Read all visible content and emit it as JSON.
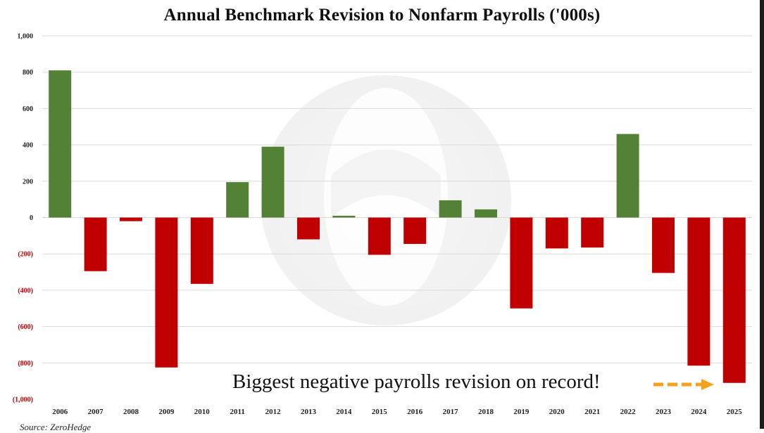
{
  "title": "Annual Benchmark Revision to Nonfarm Payrolls ('000s)",
  "annotation": "Biggest negative payrolls revision on record!",
  "source": "Source: ZeroHedge",
  "colors": {
    "positive": "#538135",
    "negative": "#c00000",
    "negative_tick": "#c00000",
    "positive_tick": "#222222",
    "arrow": "#f4a21d",
    "grid": "#d9d9d9"
  },
  "chart_data": {
    "type": "bar",
    "title": "Annual Benchmark Revision to Nonfarm Payrolls ('000s)",
    "xlabel": "",
    "ylabel": "",
    "ylim": [
      -1000,
      1000
    ],
    "yticks": [
      1000,
      800,
      600,
      400,
      200,
      0,
      -200,
      -400,
      -600,
      -800,
      -1000
    ],
    "ytick_labels": [
      "1,000",
      "800",
      "600",
      "400",
      "200",
      "0",
      "(200)",
      "(400)",
      "(600)",
      "(800)",
      "(1,000)"
    ],
    "grid": true,
    "legend": "none",
    "categories": [
      "2006",
      "2007",
      "2008",
      "2009",
      "2010",
      "2011",
      "2012",
      "2013",
      "2014",
      "2015",
      "2016",
      "2017",
      "2018",
      "2019",
      "2020",
      "2021",
      "2022",
      "2023",
      "2024",
      "2025"
    ],
    "values": [
      810,
      -295,
      -20,
      -825,
      -365,
      195,
      390,
      -120,
      10,
      -205,
      -145,
      95,
      45,
      -500,
      -170,
      -165,
      460,
      -305,
      -815,
      -910
    ]
  }
}
